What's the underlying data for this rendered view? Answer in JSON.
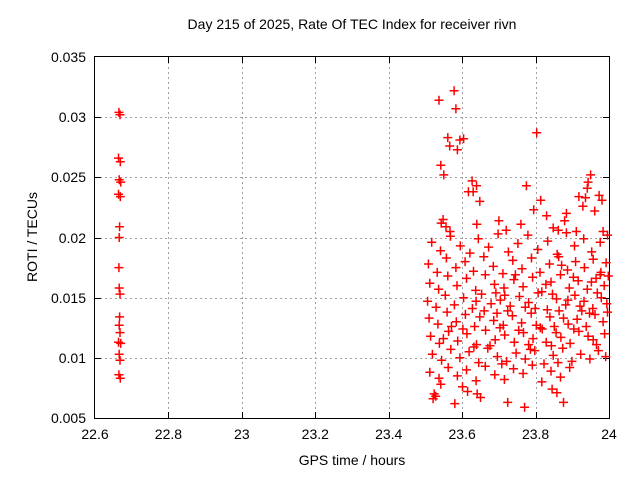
{
  "chart_data": {
    "type": "scatter",
    "title": "Day 215 of 2025, Rate Of TEC Index for receiver rivn",
    "xlabel": "GPS time / hours",
    "ylabel": "ROTI / TECUs",
    "xlim": [
      22.6,
      24
    ],
    "ylim": [
      0.005,
      0.035
    ],
    "xticks": [
      {
        "v": 22.6,
        "label": "22.6"
      },
      {
        "v": 22.8,
        "label": "22.8"
      },
      {
        "v": 23,
        "label": "23"
      },
      {
        "v": 23.2,
        "label": "23.2"
      },
      {
        "v": 23.4,
        "label": "23.4"
      },
      {
        "v": 23.6,
        "label": "23.6"
      },
      {
        "v": 23.8,
        "label": "23.8"
      },
      {
        "v": 24,
        "label": "24"
      }
    ],
    "yticks": [
      {
        "v": 0.005,
        "label": "0.005"
      },
      {
        "v": 0.01,
        "label": "0.01"
      },
      {
        "v": 0.015,
        "label": "0.015"
      },
      {
        "v": 0.02,
        "label": "0.02"
      },
      {
        "v": 0.025,
        "label": "0.025"
      },
      {
        "v": 0.03,
        "label": "0.03"
      },
      {
        "v": 0.035,
        "label": "0.035"
      }
    ],
    "grid": true,
    "legend": "none",
    "marker": "plus",
    "marker_color": "#ff0000",
    "grid_color": "#a0a0a0",
    "border_color": "#000000",
    "series_name": "ROTI",
    "points": [
      [
        22.665,
        0.0304
      ],
      [
        22.668,
        0.0302
      ],
      [
        22.664,
        0.0266
      ],
      [
        22.669,
        0.0263
      ],
      [
        22.666,
        0.0248
      ],
      [
        22.67,
        0.0246
      ],
      [
        22.664,
        0.0236
      ],
      [
        22.669,
        0.0234
      ],
      [
        22.667,
        0.0209
      ],
      [
        22.666,
        0.02
      ],
      [
        22.665,
        0.0175
      ],
      [
        22.666,
        0.0158
      ],
      [
        22.668,
        0.0153
      ],
      [
        22.667,
        0.0134
      ],
      [
        22.666,
        0.0127
      ],
      [
        22.668,
        0.0121
      ],
      [
        22.664,
        0.0113
      ],
      [
        22.67,
        0.0112
      ],
      [
        22.666,
        0.0103
      ],
      [
        22.668,
        0.0098
      ],
      [
        22.665,
        0.0086
      ],
      [
        22.669,
        0.0083
      ],
      [
        23.578,
        0.0322
      ],
      [
        23.537,
        0.0314
      ],
      [
        23.583,
        0.0307
      ],
      [
        23.561,
        0.0283
      ],
      [
        23.594,
        0.0281
      ],
      [
        23.604,
        0.0282
      ],
      [
        23.566,
        0.0276
      ],
      [
        23.587,
        0.0273
      ],
      [
        23.542,
        0.026
      ],
      [
        23.55,
        0.0252
      ],
      [
        23.627,
        0.0247
      ],
      [
        23.639,
        0.0243
      ],
      [
        23.803,
        0.0287
      ],
      [
        23.95,
        0.0252
      ],
      [
        23.943,
        0.0246
      ],
      [
        23.941,
        0.0241
      ],
      [
        23.775,
        0.0243
      ],
      [
        23.617,
        0.0238
      ],
      [
        23.63,
        0.0238
      ],
      [
        23.648,
        0.023
      ],
      [
        23.918,
        0.0234
      ],
      [
        23.936,
        0.0233
      ],
      [
        23.814,
        0.0231
      ],
      [
        23.795,
        0.0223
      ],
      [
        23.973,
        0.0235
      ],
      [
        23.981,
        0.0231
      ],
      [
        23.83,
        0.0218
      ],
      [
        23.961,
        0.0222
      ],
      [
        23.929,
        0.0226
      ],
      [
        23.879,
        0.0214
      ],
      [
        23.848,
        0.0208
      ],
      [
        23.862,
        0.0206
      ],
      [
        23.911,
        0.0205
      ],
      [
        23.984,
        0.0205
      ],
      [
        23.548,
        0.0215
      ],
      [
        23.556,
        0.0209
      ],
      [
        23.567,
        0.0205
      ],
      [
        23.543,
        0.0212
      ],
      [
        23.64,
        0.0211
      ],
      [
        23.7,
        0.0214
      ],
      [
        23.72,
        0.0206
      ],
      [
        23.76,
        0.0211
      ],
      [
        23.884,
        0.022
      ],
      [
        23.517,
        0.0196
      ],
      [
        23.541,
        0.0189
      ],
      [
        23.568,
        0.0201
      ],
      [
        23.595,
        0.0193
      ],
      [
        23.621,
        0.0187
      ],
      [
        23.644,
        0.0199
      ],
      [
        23.672,
        0.0192
      ],
      [
        23.698,
        0.0203
      ],
      [
        23.726,
        0.0188
      ],
      [
        23.752,
        0.0195
      ],
      [
        23.779,
        0.0202
      ],
      [
        23.806,
        0.019
      ],
      [
        23.833,
        0.0197
      ],
      [
        23.859,
        0.0186
      ],
      [
        23.884,
        0.0204
      ],
      [
        23.906,
        0.0193
      ],
      [
        23.931,
        0.0199
      ],
      [
        23.953,
        0.0188
      ],
      [
        23.976,
        0.0196
      ],
      [
        23.996,
        0.0202
      ],
      [
        23.508,
        0.0178
      ],
      [
        23.532,
        0.0171
      ],
      [
        23.557,
        0.0183
      ],
      [
        23.583,
        0.0175
      ],
      [
        23.608,
        0.018
      ],
      [
        23.631,
        0.0172
      ],
      [
        23.659,
        0.0184
      ],
      [
        23.685,
        0.0176
      ],
      [
        23.711,
        0.017
      ],
      [
        23.738,
        0.0181
      ],
      [
        23.763,
        0.0174
      ],
      [
        23.789,
        0.0183
      ],
      [
        23.812,
        0.0171
      ],
      [
        23.838,
        0.0178
      ],
      [
        23.863,
        0.0184
      ],
      [
        23.887,
        0.0173
      ],
      [
        23.909,
        0.018
      ],
      [
        23.933,
        0.0175
      ],
      [
        23.957,
        0.0182
      ],
      [
        23.978,
        0.0171
      ],
      [
        23.992,
        0.0179
      ],
      [
        23.871,
        0.0177
      ],
      [
        23.512,
        0.0162
      ],
      [
        23.536,
        0.0157
      ],
      [
        23.561,
        0.0168
      ],
      [
        23.586,
        0.016
      ],
      [
        23.612,
        0.0166
      ],
      [
        23.637,
        0.0156
      ],
      [
        23.663,
        0.0169
      ],
      [
        23.688,
        0.0161
      ],
      [
        23.714,
        0.0158
      ],
      [
        23.741,
        0.0165
      ],
      [
        23.766,
        0.0159
      ],
      [
        23.792,
        0.0167
      ],
      [
        23.817,
        0.0155
      ],
      [
        23.842,
        0.0163
      ],
      [
        23.868,
        0.0169
      ],
      [
        23.892,
        0.0158
      ],
      [
        23.916,
        0.0164
      ],
      [
        23.941,
        0.0157
      ],
      [
        23.965,
        0.0166
      ],
      [
        23.987,
        0.016
      ],
      [
        23.998,
        0.0168
      ],
      [
        23.745,
        0.0169
      ],
      [
        23.828,
        0.0161
      ],
      [
        23.903,
        0.0167
      ],
      [
        23.952,
        0.0163
      ],
      [
        23.976,
        0.0169
      ],
      [
        23.506,
        0.0147
      ],
      [
        23.529,
        0.0142
      ],
      [
        23.554,
        0.0152
      ],
      [
        23.579,
        0.0144
      ],
      [
        23.604,
        0.015
      ],
      [
        23.628,
        0.0141
      ],
      [
        23.653,
        0.0153
      ],
      [
        23.679,
        0.0145
      ],
      [
        23.704,
        0.0148
      ],
      [
        23.731,
        0.0143
      ],
      [
        23.756,
        0.0151
      ],
      [
        23.781,
        0.0146
      ],
      [
        23.807,
        0.0154
      ],
      [
        23.832,
        0.014
      ],
      [
        23.857,
        0.0149
      ],
      [
        23.882,
        0.0144
      ],
      [
        23.907,
        0.0152
      ],
      [
        23.932,
        0.0147
      ],
      [
        23.956,
        0.0141
      ],
      [
        23.979,
        0.015
      ],
      [
        23.994,
        0.0145
      ],
      [
        23.692,
        0.0154
      ],
      [
        23.772,
        0.0142
      ],
      [
        23.846,
        0.0153
      ],
      [
        23.921,
        0.0143
      ],
      [
        23.968,
        0.0154
      ],
      [
        23.888,
        0.0148
      ],
      [
        23.638,
        0.0147
      ],
      [
        23.716,
        0.0152
      ],
      [
        23.799,
        0.0141
      ],
      [
        23.51,
        0.0133
      ],
      [
        23.534,
        0.0128
      ],
      [
        23.559,
        0.0138
      ],
      [
        23.584,
        0.013
      ],
      [
        23.609,
        0.0136
      ],
      [
        23.634,
        0.0126
      ],
      [
        23.66,
        0.0139
      ],
      [
        23.686,
        0.0131
      ],
      [
        23.712,
        0.0127
      ],
      [
        23.737,
        0.0135
      ],
      [
        23.762,
        0.0129
      ],
      [
        23.788,
        0.0137
      ],
      [
        23.813,
        0.0125
      ],
      [
        23.839,
        0.0134
      ],
      [
        23.864,
        0.0139
      ],
      [
        23.889,
        0.0128
      ],
      [
        23.913,
        0.0132
      ],
      [
        23.938,
        0.0126
      ],
      [
        23.962,
        0.0136
      ],
      [
        23.984,
        0.013
      ],
      [
        23.996,
        0.0138
      ],
      [
        23.648,
        0.0134
      ],
      [
        23.724,
        0.0139
      ],
      [
        23.802,
        0.0127
      ],
      [
        23.876,
        0.0133
      ],
      [
        23.947,
        0.0137
      ],
      [
        23.571,
        0.0126
      ],
      [
        23.695,
        0.0137
      ],
      [
        23.851,
        0.0126
      ],
      [
        23.926,
        0.0139
      ],
      [
        23.514,
        0.0118
      ],
      [
        23.538,
        0.0112
      ],
      [
        23.563,
        0.0122
      ],
      [
        23.588,
        0.0114
      ],
      [
        23.613,
        0.012
      ],
      [
        23.639,
        0.0111
      ],
      [
        23.664,
        0.0123
      ],
      [
        23.69,
        0.0115
      ],
      [
        23.716,
        0.0119
      ],
      [
        23.742,
        0.0113
      ],
      [
        23.767,
        0.0121
      ],
      [
        23.793,
        0.0116
      ],
      [
        23.818,
        0.0124
      ],
      [
        23.843,
        0.011
      ],
      [
        23.869,
        0.0117
      ],
      [
        23.894,
        0.0112
      ],
      [
        23.918,
        0.0122
      ],
      [
        23.943,
        0.0118
      ],
      [
        23.966,
        0.0111
      ],
      [
        23.988,
        0.012
      ],
      [
        23.602,
        0.0124
      ],
      [
        23.676,
        0.011
      ],
      [
        23.754,
        0.0123
      ],
      [
        23.829,
        0.0113
      ],
      [
        23.904,
        0.0124
      ],
      [
        23.957,
        0.0115
      ],
      [
        23.549,
        0.0116
      ],
      [
        23.703,
        0.0125
      ],
      [
        23.781,
        0.0111
      ],
      [
        23.856,
        0.0121
      ],
      [
        23.519,
        0.0103
      ],
      [
        23.544,
        0.0098
      ],
      [
        23.569,
        0.0107
      ],
      [
        23.594,
        0.01
      ],
      [
        23.619,
        0.0105
      ],
      [
        23.645,
        0.0096
      ],
      [
        23.67,
        0.0108
      ],
      [
        23.696,
        0.0101
      ],
      [
        23.721,
        0.0097
      ],
      [
        23.747,
        0.0104
      ],
      [
        23.772,
        0.0099
      ],
      [
        23.798,
        0.0106
      ],
      [
        23.823,
        0.0095
      ],
      [
        23.848,
        0.0102
      ],
      [
        23.874,
        0.0108
      ],
      [
        23.899,
        0.0097
      ],
      [
        23.923,
        0.0103
      ],
      [
        23.948,
        0.0099
      ],
      [
        23.971,
        0.0106
      ],
      [
        23.991,
        0.0101
      ],
      [
        23.632,
        0.0109
      ],
      [
        23.708,
        0.0095
      ],
      [
        23.786,
        0.0107
      ],
      [
        23.861,
        0.0096
      ],
      [
        23.512,
        0.0088
      ],
      [
        23.537,
        0.0083
      ],
      [
        23.562,
        0.0092
      ],
      [
        23.587,
        0.0085
      ],
      [
        23.612,
        0.009
      ],
      [
        23.638,
        0.0081
      ],
      [
        23.663,
        0.0093
      ],
      [
        23.689,
        0.0086
      ],
      [
        23.715,
        0.0082
      ],
      [
        23.74,
        0.0091
      ],
      [
        23.766,
        0.0087
      ],
      [
        23.791,
        0.0094
      ],
      [
        23.817,
        0.008
      ],
      [
        23.842,
        0.0089
      ],
      [
        23.868,
        0.0084
      ],
      [
        23.893,
        0.0092
      ],
      [
        23.524,
        0.007
      ],
      [
        23.521,
        0.0066
      ],
      [
        23.528,
        0.0068
      ],
      [
        23.601,
        0.0076
      ],
      [
        23.615,
        0.0072
      ],
      [
        23.641,
        0.007
      ],
      [
        23.65,
        0.0067
      ],
      [
        23.58,
        0.0062
      ],
      [
        23.724,
        0.0063
      ],
      [
        23.77,
        0.0059
      ],
      [
        23.876,
        0.0063
      ],
      [
        23.845,
        0.0074
      ],
      [
        23.858,
        0.0071
      ],
      [
        23.542,
        0.0078
      ]
    ]
  }
}
